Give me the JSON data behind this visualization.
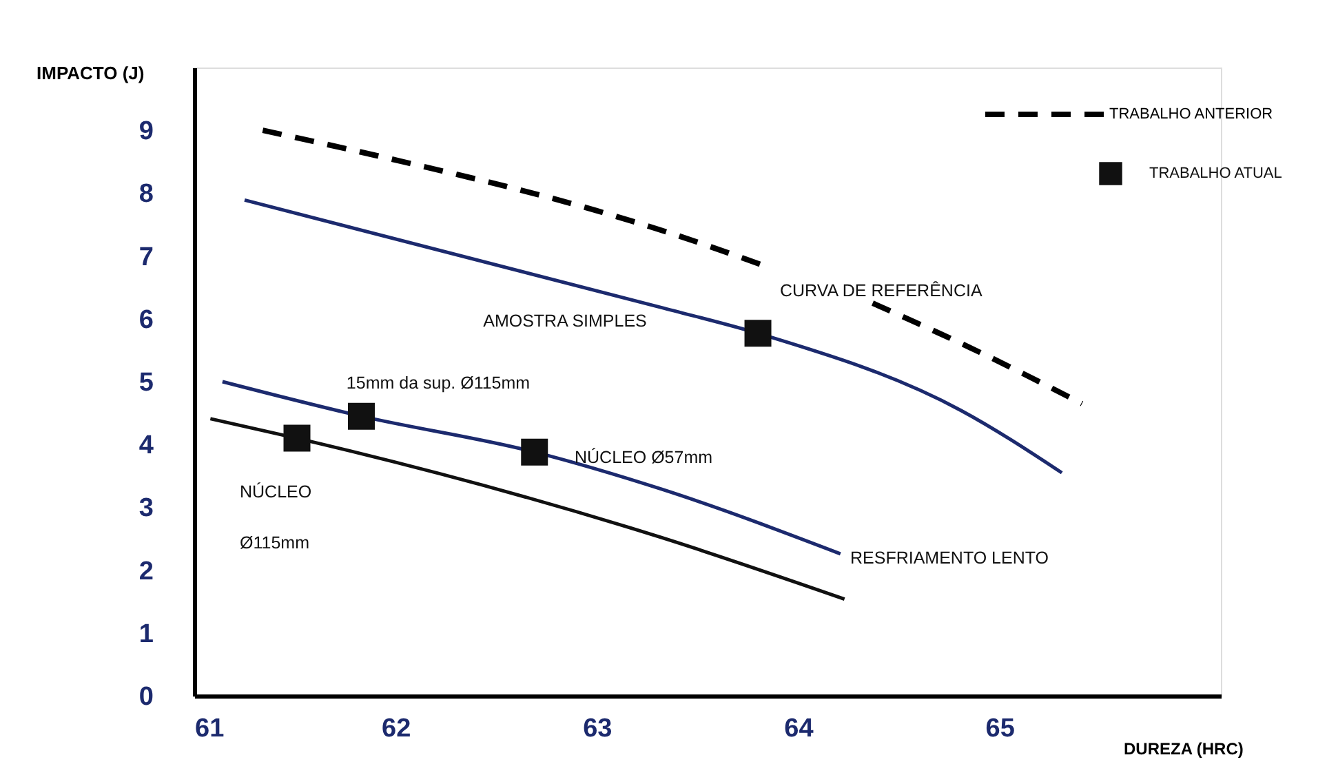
{
  "chart_data": {
    "type": "line",
    "xlabel": "DUREZA (HRC)",
    "ylabel": "IMPACTO (J)",
    "xlim": [
      61,
      66.1
    ],
    "ylim": [
      0,
      10
    ],
    "xticks": [
      61,
      62,
      63,
      64,
      65
    ],
    "yticks": [
      0,
      1,
      2,
      3,
      4,
      5,
      6,
      7,
      8,
      9
    ],
    "grid": false,
    "legend": "top right",
    "series": [
      {
        "name": "TRABALHO ANTERIOR",
        "line_style": "dashed",
        "color": "#000000",
        "x": [
          61.34,
          61.97,
          63.0,
          63.32,
          63.87,
          64.1,
          64.37,
          64.92,
          65.41
        ],
        "values": [
          9.0,
          8.55,
          7.72,
          7.41,
          6.8,
          null,
          6.25,
          5.44,
          4.65
        ]
      },
      {
        "color": "#1c2a6e",
        "x": [
          61.25,
          63.32,
          63.8,
          64.81,
          65.31
        ],
        "values": [
          7.89,
          6.18,
          5.77,
          4.54,
          3.55
        ]
      },
      {
        "color": "#1c2a6e",
        "x": [
          61.14,
          61.83,
          62.69,
          63.32,
          64.21
        ],
        "values": [
          5.0,
          4.45,
          3.88,
          3.29,
          2.26
        ]
      },
      {
        "color": "#111111",
        "x": [
          61.08,
          61.51,
          63.32,
          64.23
        ],
        "values": [
          4.41,
          4.1,
          2.52,
          1.54
        ]
      },
      {
        "name": "TRABALHO ATUAL",
        "type": "scatter",
        "marker": "square",
        "color": "#111111",
        "x": [
          61.51,
          61.83,
          62.69,
          63.8
        ],
        "values": [
          4.1,
          4.45,
          3.88,
          5.77
        ]
      }
    ],
    "annotations": [
      "AMOSTRA SIMPLES",
      "15mm da sup. Ø115mm",
      "NÚCLEO Ø57mm",
      "NÚCLEO",
      "Ø115mm",
      "CURVA DE REFERÊNCIA",
      "RESFRIAMENTO LENTO"
    ]
  }
}
